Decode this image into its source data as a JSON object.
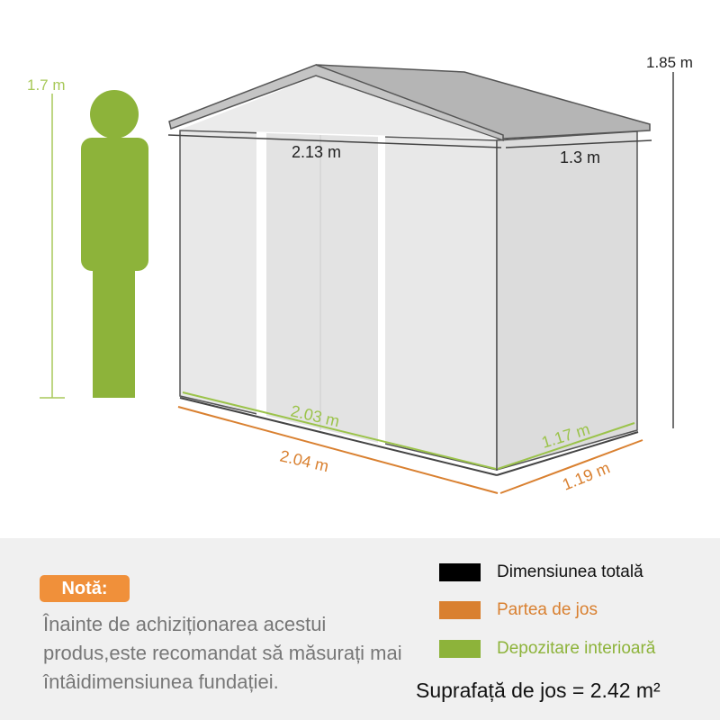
{
  "person_height": "1.7 m",
  "total_height": "1.85 m",
  "roof_width": "2.13 m",
  "roof_depth": "1.3 m",
  "interior_width": "2.03 m",
  "interior_depth": "1.17 m",
  "base_width": "2.04 m",
  "base_depth": "1.19 m",
  "note": {
    "badge": "Notă:",
    "text": "Înainte de achiziționarea acestui produs,este recomandat să măsurați mai întâidimensiunea fundației."
  },
  "legend": [
    {
      "label": "Dimensiunea totală",
      "color": "#000000"
    },
    {
      "label": "Partea de jos",
      "color": "#d98030"
    },
    {
      "label": "Depozitare interioară",
      "color": "#8db33a"
    }
  ],
  "floor_area": "Suprafață de jos = 2.42 m²",
  "colors": {
    "person": "#8db33a",
    "roof": "#b5b5b5",
    "wall": "#e6e6e6",
    "note_badge": "#f0903a",
    "panel": "#f0f0f0"
  }
}
